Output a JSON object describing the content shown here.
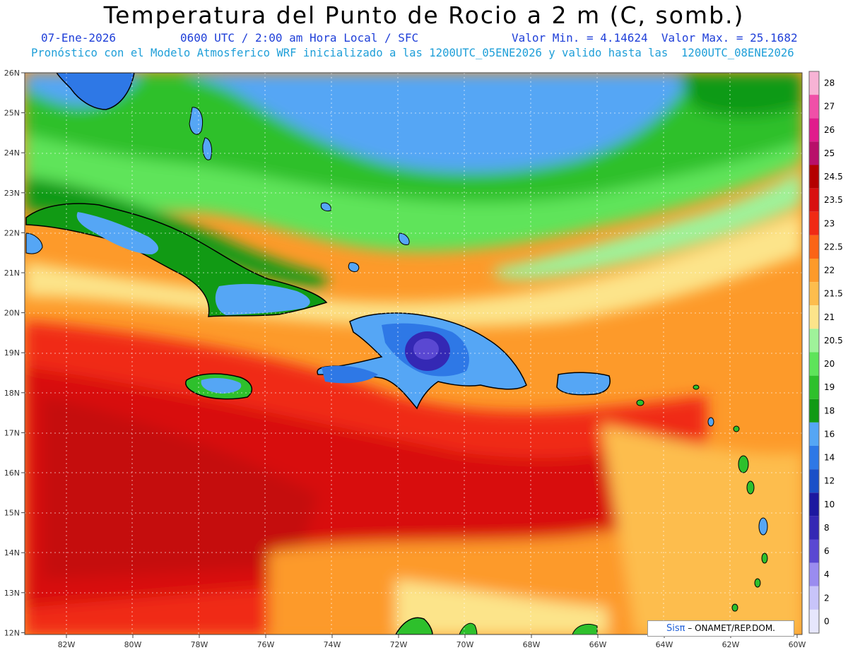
{
  "title": "Temperatura del Punto de Rocio a 2 m (C, somb.)",
  "date": "07-Ene-2026",
  "time": "0600 UTC / 2:00 am Hora Local / SFC",
  "minmax": "Valor Min. = 4.14624  Valor Max. = 25.1682",
  "model_line": "Pronóstico con el Modelo Atmosferico WRF inicializado a las 1200UTC_05ENE2026 y valido hasta las  1200UTC_08ENE2026",
  "credit_logo": "Sisπ",
  "credit_text": "– ONAMET/REP.DOM.",
  "lat_labels": [
    "26N",
    "25N",
    "24N",
    "23N",
    "22N",
    "21N",
    "20N",
    "19N",
    "18N",
    "17N",
    "16N",
    "15N",
    "14N",
    "13N",
    "12N"
  ],
  "lon_labels": [
    "82W",
    "80W",
    "78W",
    "76W",
    "74W",
    "72W",
    "70W",
    "68W",
    "66W",
    "64W",
    "62W",
    "60W"
  ],
  "colorbar": [
    {
      "label": "28",
      "color": "#f7b3d5"
    },
    {
      "label": "27",
      "color": "#f050a8"
    },
    {
      "label": "26",
      "color": "#e01c8c"
    },
    {
      "label": "25",
      "color": "#b8106a"
    },
    {
      "label": "24.5",
      "color": "#b40000"
    },
    {
      "label": "23.5",
      "color": "#d81010"
    },
    {
      "label": "23",
      "color": "#f02a14"
    },
    {
      "label": "22.5",
      "color": "#fb6416"
    },
    {
      "label": "22",
      "color": "#fd9a2a"
    },
    {
      "label": "21.5",
      "color": "#fdbd4d"
    },
    {
      "label": "21",
      "color": "#fce48a"
    },
    {
      "label": "20.5",
      "color": "#9ff29a"
    },
    {
      "label": "20",
      "color": "#5ee45a"
    },
    {
      "label": "19",
      "color": "#2ec02c"
    },
    {
      "label": "18",
      "color": "#119a14"
    },
    {
      "label": "16",
      "color": "#55a6f5"
    },
    {
      "label": "14",
      "color": "#2e78e6"
    },
    {
      "label": "12",
      "color": "#1a50c8"
    },
    {
      "label": "10",
      "color": "#1c18a0"
    },
    {
      "label": "8",
      "color": "#3428b4"
    },
    {
      "label": "6",
      "color": "#5a48d2"
    },
    {
      "label": "4",
      "color": "#9a8cf0"
    },
    {
      "label": "2",
      "color": "#c8c4fa"
    },
    {
      "label": "0",
      "color": "#e6e6fc"
    }
  ]
}
